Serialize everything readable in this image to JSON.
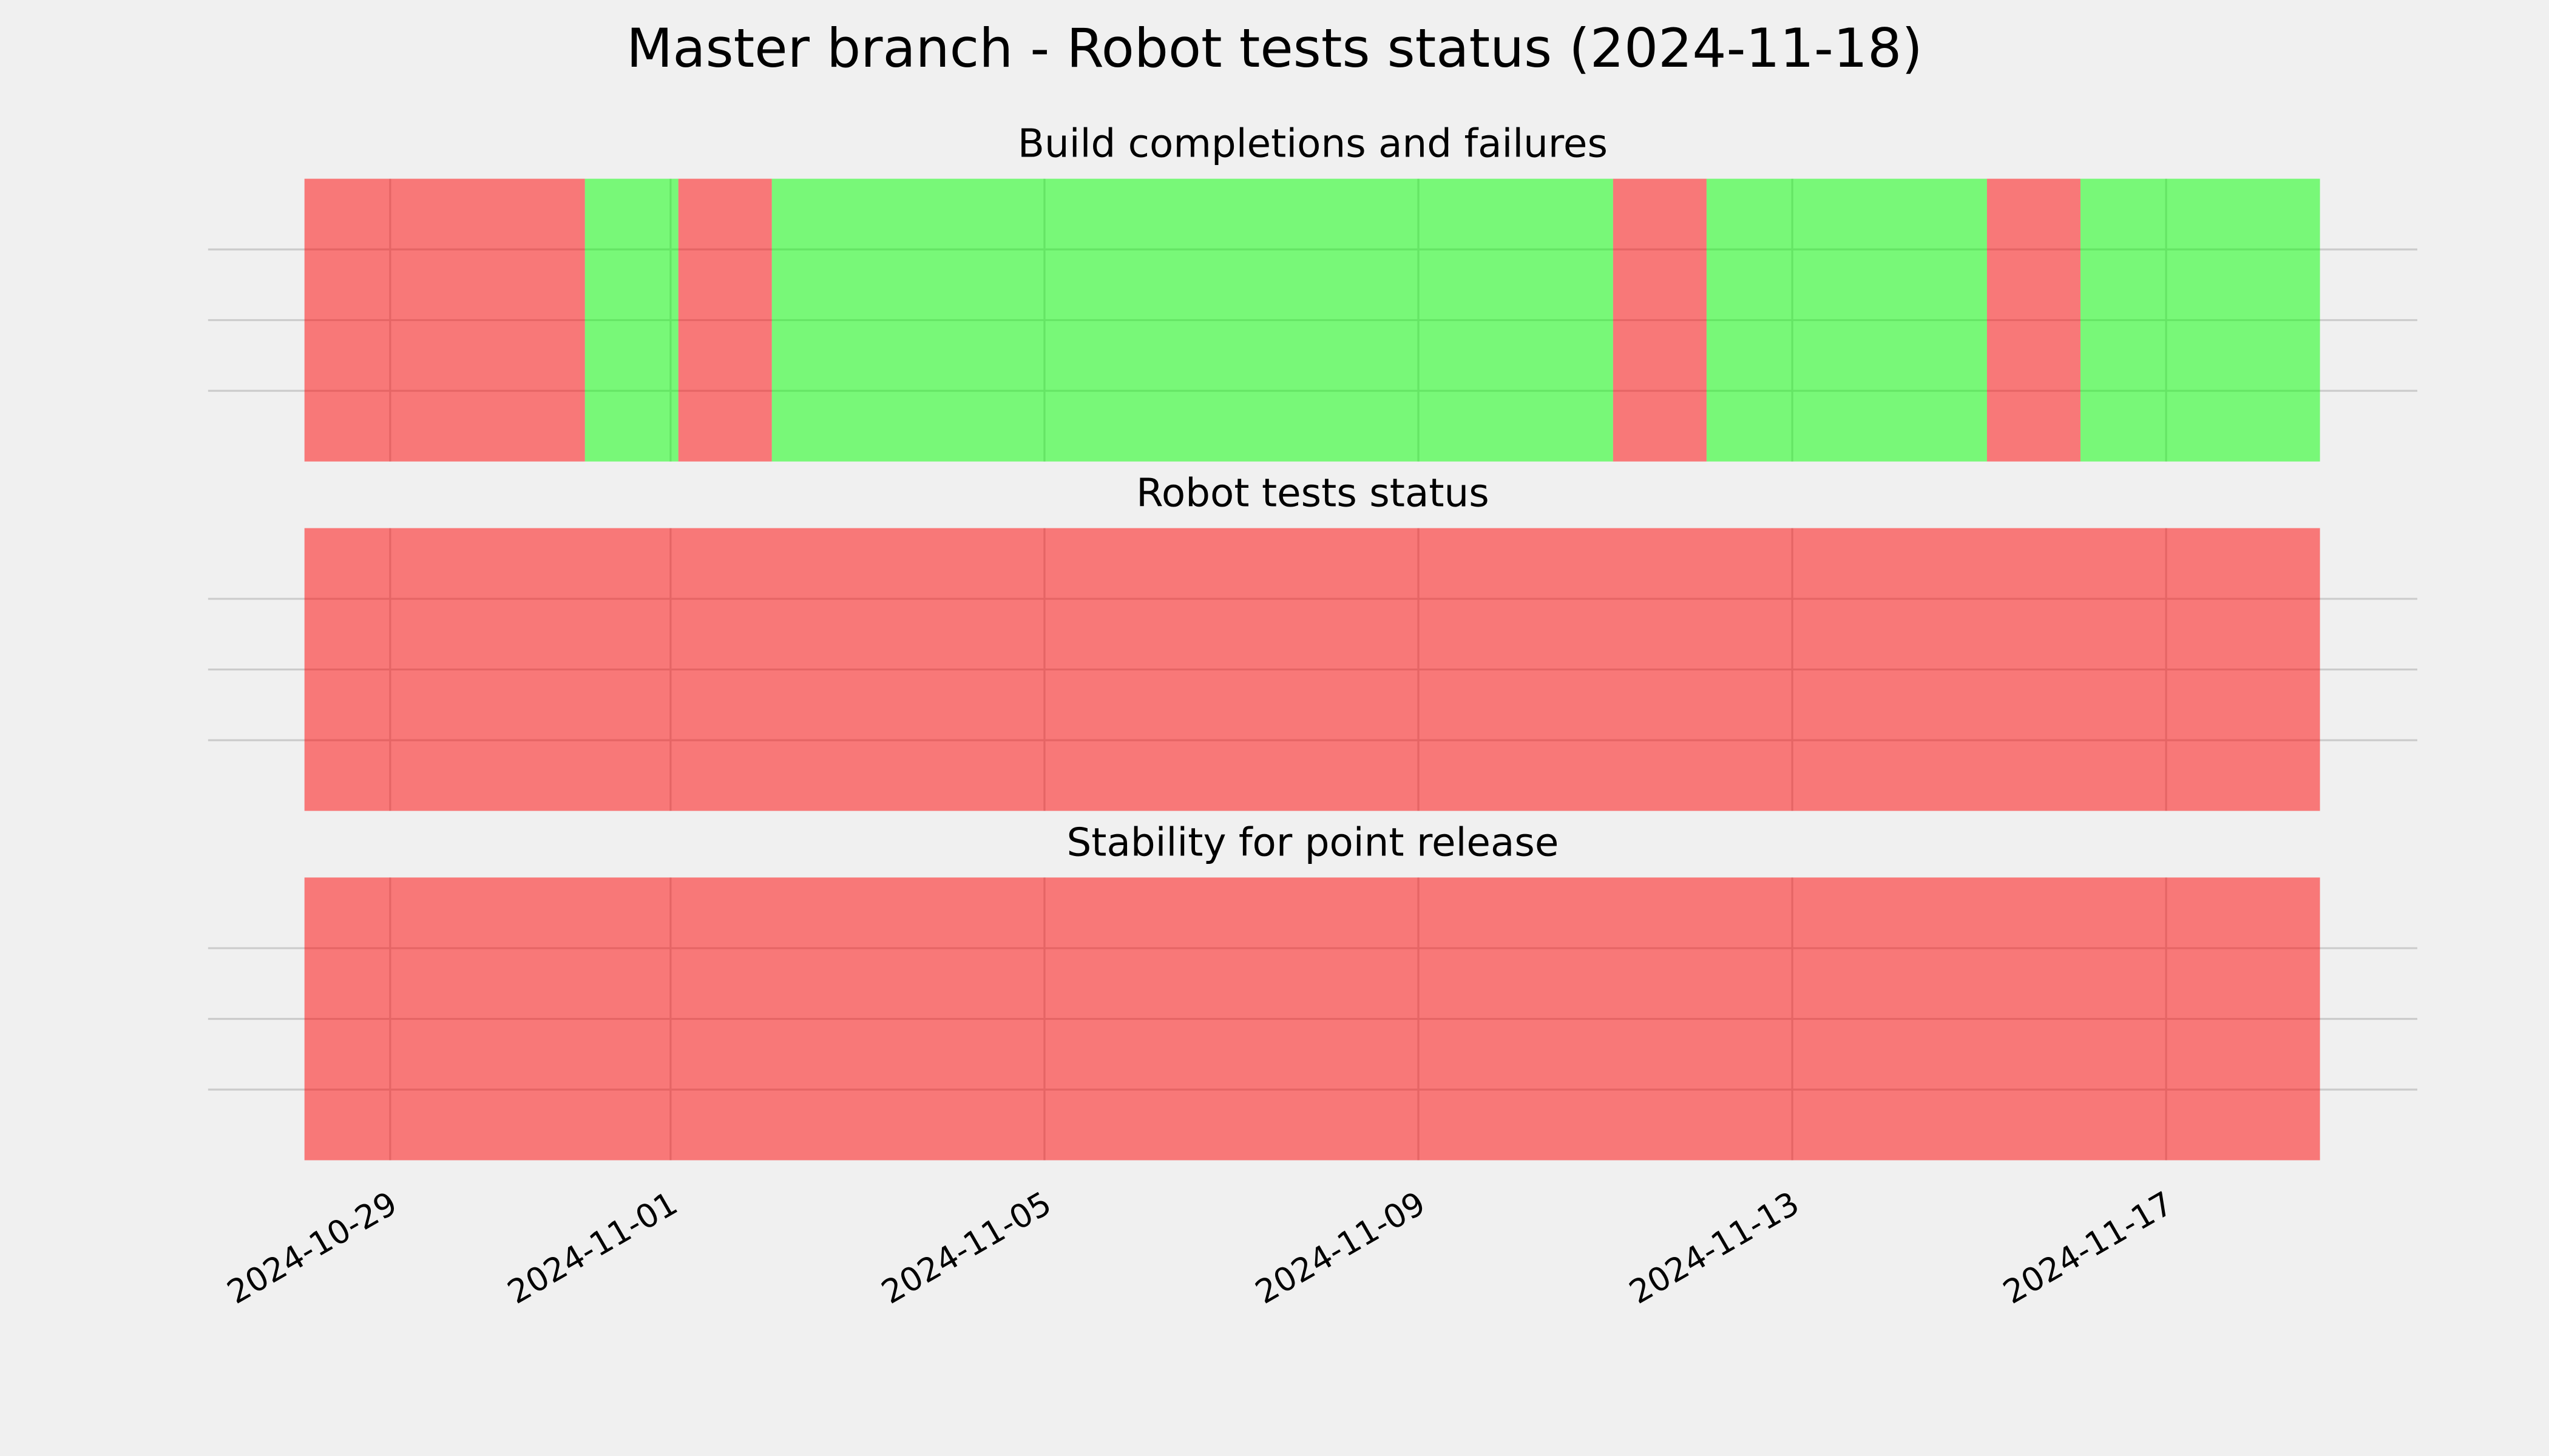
{
  "title": "Master branch - Robot tests status (2024-11-18)",
  "chart_data": [
    {
      "type": "timeline",
      "title": "Build completions and failures",
      "alpha": 0.5,
      "grid": true,
      "spans": [
        {
          "start": "2024-10-28 02:00",
          "end": "2024-10-31 02:00",
          "color": "#ff0000"
        },
        {
          "start": "2024-10-31 02:00",
          "end": "2024-11-01 02:00",
          "color": "#00ff00"
        },
        {
          "start": "2024-11-01 02:00",
          "end": "2024-11-02 02:00",
          "color": "#ff0000"
        },
        {
          "start": "2024-11-02 02:00",
          "end": "2024-11-11 02:00",
          "color": "#00ff00"
        },
        {
          "start": "2024-11-11 02:00",
          "end": "2024-11-12 02:00",
          "color": "#ff0000"
        },
        {
          "start": "2024-11-12 02:00",
          "end": "2024-11-15 02:00",
          "color": "#00ff00"
        },
        {
          "start": "2024-11-15 02:00",
          "end": "2024-11-16 02:00",
          "color": "#ff0000"
        },
        {
          "start": "2024-11-16 02:00",
          "end": "2024-11-18 15:30",
          "color": "#00ff00"
        }
      ],
      "xlim": [
        "2024-10-27 01:15",
        "2024-11-19 16:30"
      ],
      "xticks": [
        "2024-10-29",
        "2024-11-01",
        "2024-11-05",
        "2024-11-09",
        "2024-11-13",
        "2024-11-17"
      ],
      "ylim": [
        0,
        1
      ],
      "yticks": [
        0.25,
        0.5,
        0.75
      ]
    },
    {
      "type": "timeline",
      "title": "Robot tests status",
      "alpha": 0.5,
      "grid": true,
      "spans": [
        {
          "start": "2024-10-28 02:00",
          "end": "2024-11-18 15:30",
          "color": "#ff0000"
        }
      ],
      "xlim": [
        "2024-10-27 01:15",
        "2024-11-19 16:30"
      ],
      "xticks": [
        "2024-10-29",
        "2024-11-01",
        "2024-11-05",
        "2024-11-09",
        "2024-11-13",
        "2024-11-17"
      ],
      "ylim": [
        0,
        1
      ],
      "yticks": [
        0.25,
        0.5,
        0.75
      ]
    },
    {
      "type": "timeline",
      "title": "Stability for point release",
      "alpha": 0.5,
      "grid": true,
      "spans": [
        {
          "start": "2024-10-28 02:00",
          "end": "2024-11-18 15:30",
          "color": "#ff0000"
        }
      ],
      "xlim": [
        "2024-10-27 01:15",
        "2024-11-19 16:30"
      ],
      "xticks": [
        "2024-10-29",
        "2024-11-01",
        "2024-11-05",
        "2024-11-09",
        "2024-11-13",
        "2024-11-17"
      ],
      "ylim": [
        0,
        1
      ],
      "yticks": [
        0.25,
        0.5,
        0.75
      ]
    }
  ]
}
